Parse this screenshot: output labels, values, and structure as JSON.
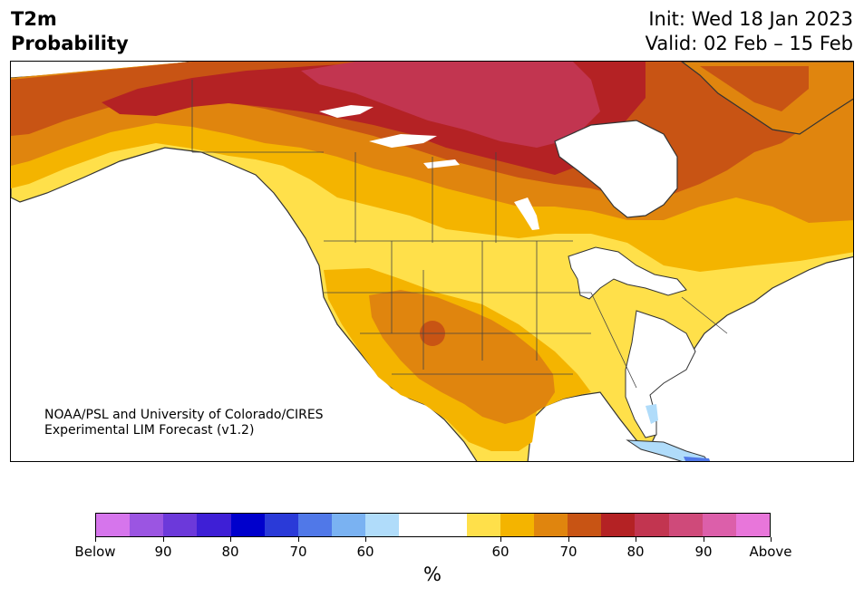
{
  "header": {
    "title_line1": "T2m",
    "title_line2": "Probability",
    "init": "Init: Wed 18 Jan 2023",
    "valid": "Valid: 02 Feb – 15 Feb"
  },
  "credit": {
    "line1": "NOAA/PSL and University of Colorado/CIRES",
    "line2": "Experimental LIM Forecast (v1.2)"
  },
  "colorbar": {
    "unit": "%",
    "tick_labels": [
      "Below",
      "90",
      "80",
      "70",
      "60",
      "60",
      "70",
      "80",
      "90",
      "Above"
    ],
    "below_colors": [
      "#d675ec",
      "#9b55e2",
      "#6c39da",
      "#3e1fd6",
      "#0000cc",
      "#2a3ad8",
      "#5078e8",
      "#7ab2f2",
      "#b0dcfa"
    ],
    "neutral_color": "#ffffff",
    "above_colors": [
      "#ffe04a",
      "#f4b400",
      "#e0850e",
      "#c85414",
      "#b42224",
      "#c23550",
      "#cf4a7a",
      "#dc5faa",
      "#e876da"
    ]
  },
  "legend_meaning": {
    "blue": "below-normal probability",
    "yellow_red": "above-normal probability"
  }
}
